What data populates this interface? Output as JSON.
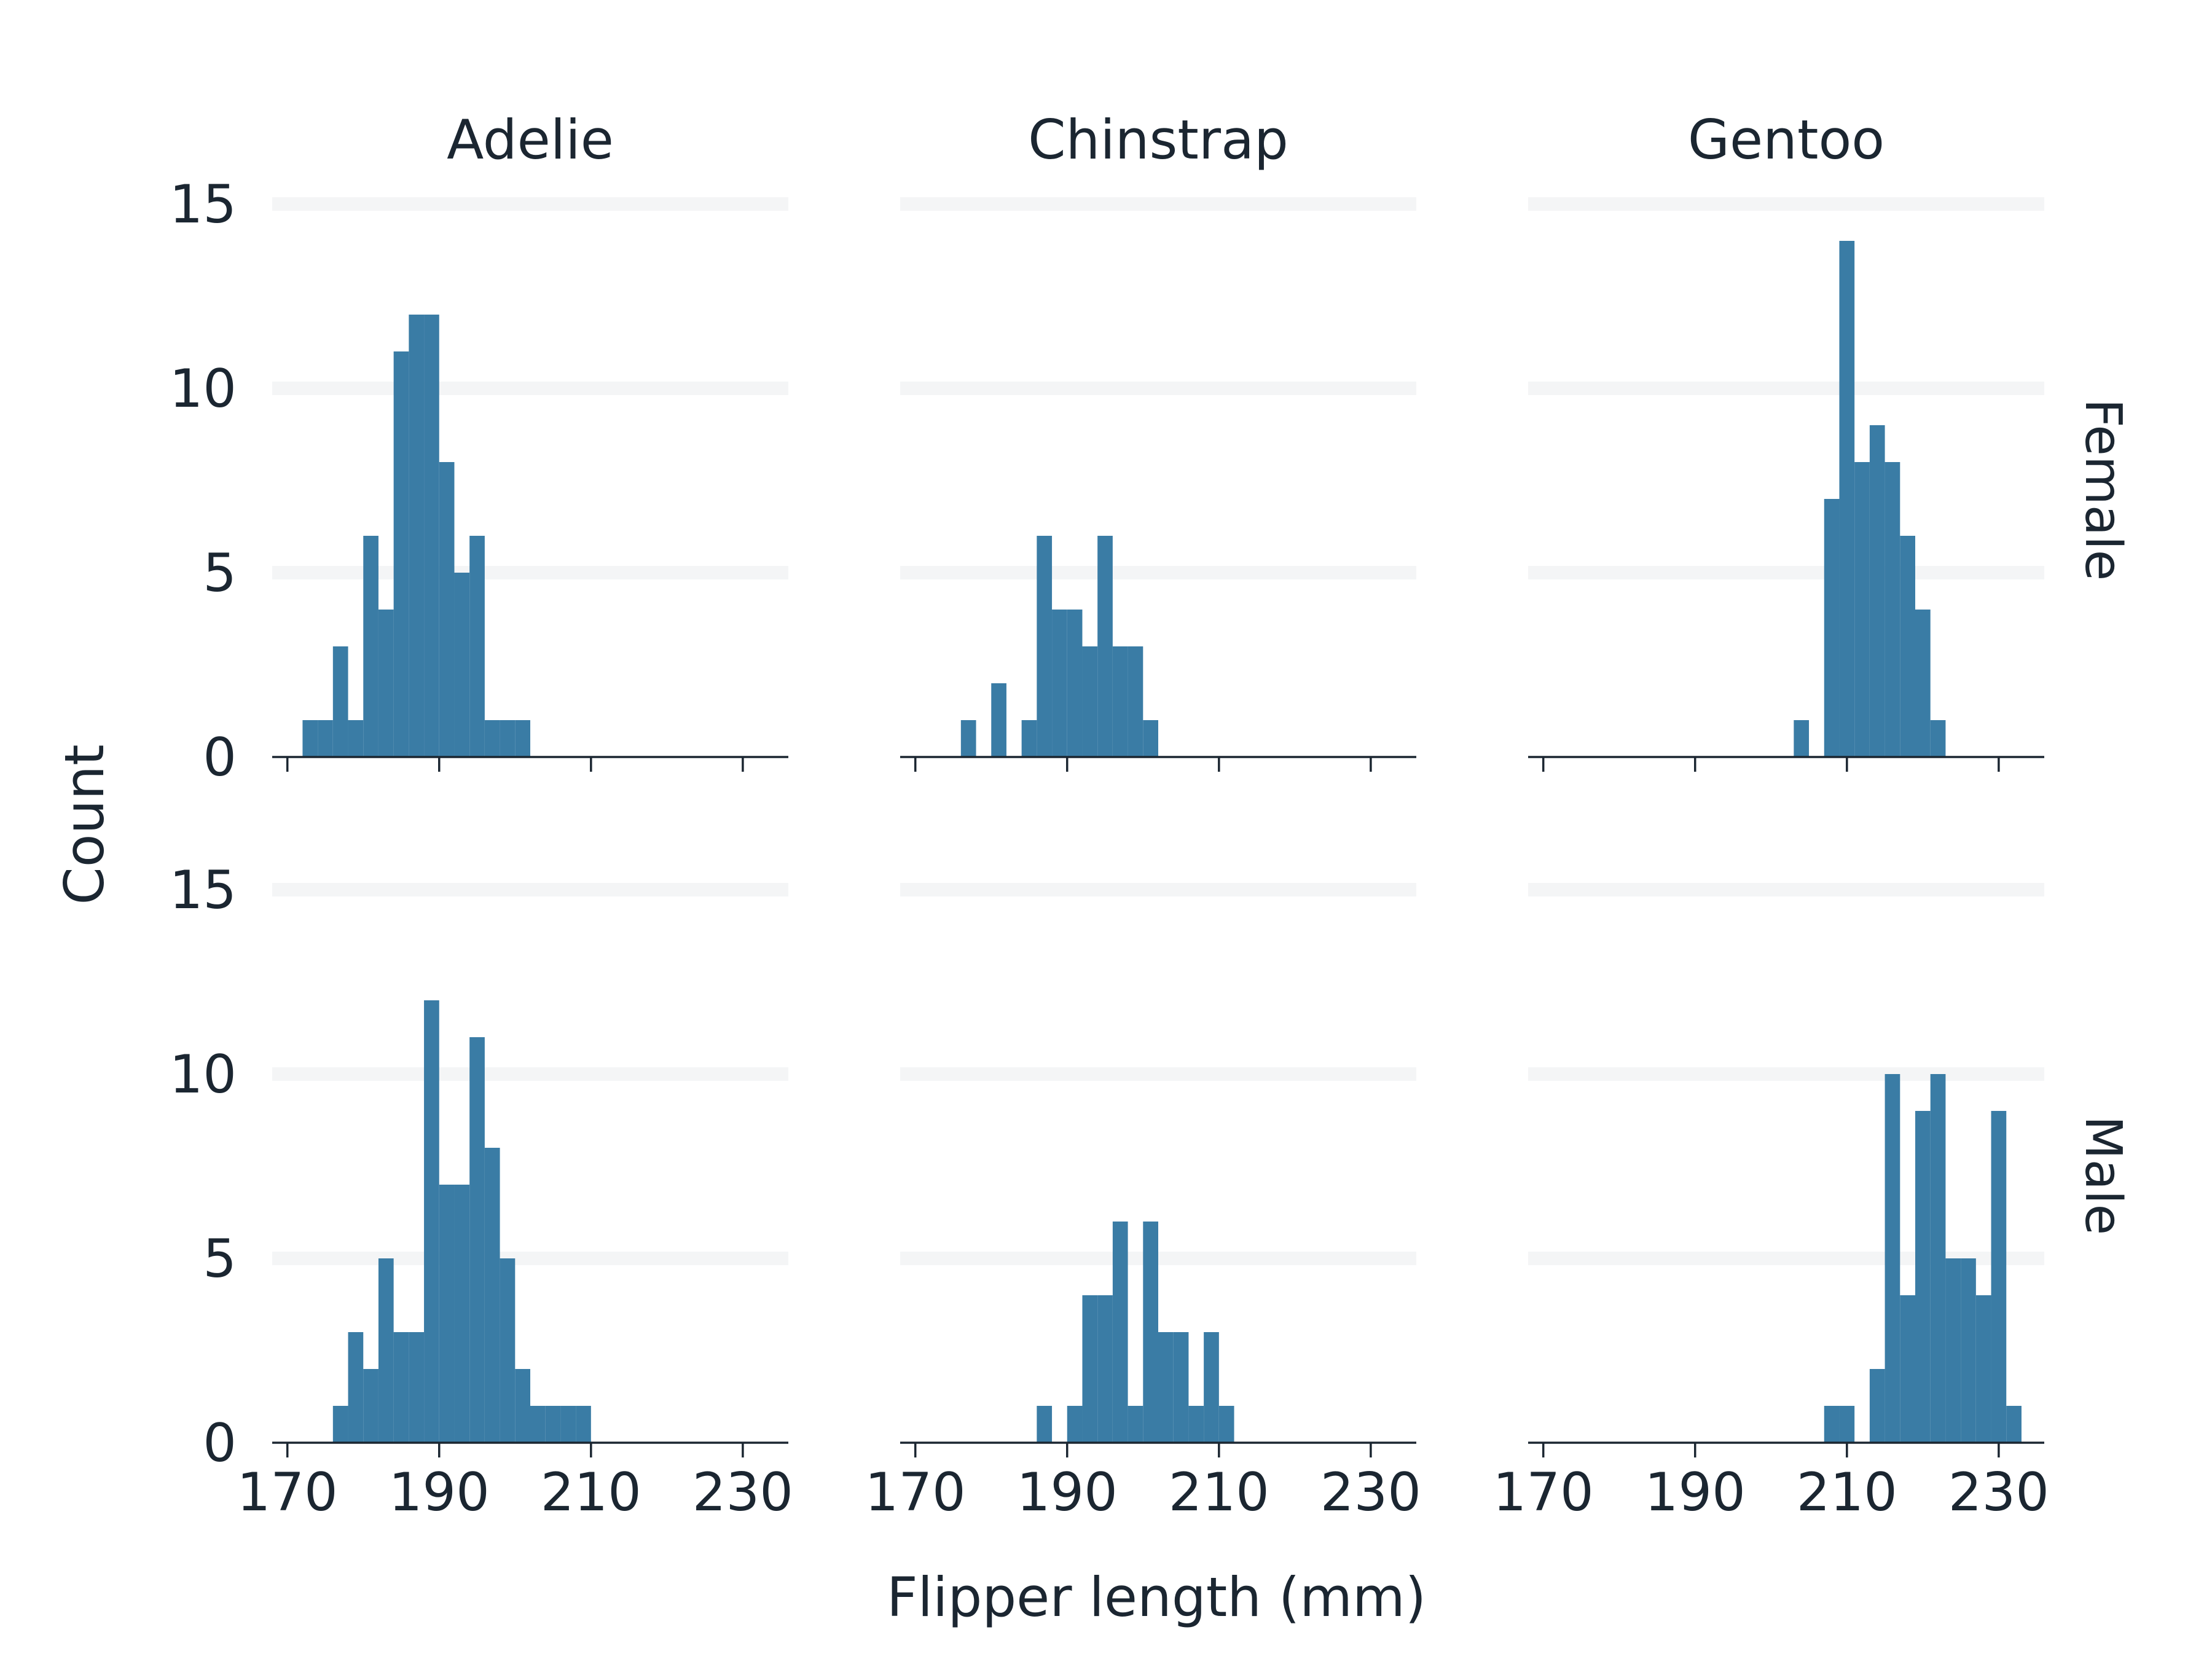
{
  "colors": {
    "bar": "#3a7ca5",
    "text": "#1b2631",
    "grid": "#f4f5f6"
  },
  "chart_data": {
    "type": "bar",
    "subtype": "faceted-histogram",
    "xlabel": "Flipper length (mm)",
    "ylabel": "Count",
    "xlim": [
      168,
      236
    ],
    "ylim": [
      0,
      15
    ],
    "x_ticks": [
      170,
      190,
      210,
      230
    ],
    "y_ticks": [
      0,
      5,
      10,
      15
    ],
    "grid": "horizontal",
    "bin_width": 2,
    "columns": [
      "Adelie",
      "Chinstrap",
      "Gentoo"
    ],
    "rows": [
      "Female",
      "Male"
    ],
    "panels": [
      {
        "row": "Female",
        "column": "Adelie",
        "bin_start": 172,
        "counts": [
          1,
          1,
          3,
          1,
          6,
          4,
          11,
          12,
          12,
          8,
          5,
          6,
          1,
          1,
          1
        ]
      },
      {
        "row": "Female",
        "column": "Chinstrap",
        "bin_start": 176,
        "counts": [
          1,
          0,
          2,
          0,
          1,
          6,
          4,
          4,
          3,
          6,
          3,
          3,
          1
        ]
      },
      {
        "row": "Female",
        "column": "Gentoo",
        "bin_start": 203,
        "counts": [
          1,
          0,
          7,
          14,
          8,
          9,
          8,
          6,
          4,
          1
        ]
      },
      {
        "row": "Male",
        "column": "Adelie",
        "bin_start": 176,
        "counts": [
          1,
          3,
          2,
          5,
          3,
          3,
          12,
          7,
          7,
          11,
          8,
          5,
          2,
          1,
          1,
          1,
          1
        ]
      },
      {
        "row": "Male",
        "column": "Chinstrap",
        "bin_start": 186,
        "counts": [
          1,
          0,
          1,
          4,
          4,
          6,
          1,
          6,
          3,
          3,
          1,
          3,
          1
        ]
      },
      {
        "row": "Male",
        "column": "Gentoo",
        "bin_start": 207,
        "counts": [
          1,
          1,
          0,
          2,
          10,
          4,
          9,
          10,
          5,
          5,
          4,
          9,
          1
        ]
      }
    ]
  }
}
